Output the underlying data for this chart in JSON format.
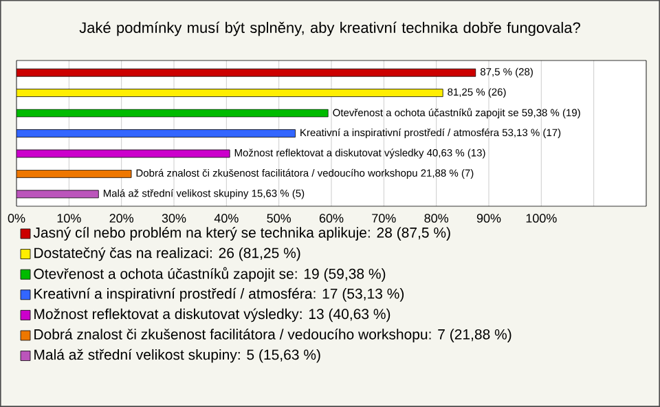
{
  "chart_data": {
    "type": "bar",
    "orientation": "horizontal",
    "stacked": true,
    "title": "Jaké podmínky musí být splněny, aby kreativní technika dobře fungovala?",
    "categories": [
      null,
      null,
      null,
      null,
      null,
      null,
      null
    ],
    "series": [
      {
        "name": "Jasný cíl nebo problém na který se technika aplikuje: 28 (87,5 %)",
        "color": "#cc0000",
        "values": [
          87.5,
          null,
          null,
          null,
          null,
          null,
          null
        ],
        "value_labels": [
          "87,5 % (28)",
          null,
          null,
          null,
          null,
          null,
          null
        ]
      },
      {
        "name": "Dostatečný čas na realizaci: 26 (81,25 %)",
        "color": "#ffee00",
        "values": [
          null,
          81.25,
          null,
          null,
          null,
          null,
          null
        ],
        "value_labels": [
          null,
          "81,25 % (26)",
          null,
          null,
          null,
          null,
          null
        ]
      },
      {
        "name": "Otevřenost a ochota účastníků zapojit se: 19 (59,38 %)",
        "color": "#00bb00",
        "values": [
          null,
          null,
          59.38,
          null,
          null,
          null,
          null
        ],
        "value_labels": [
          null,
          null,
          "Otevřenost a ochota účastníků zapojit se 59,38 % (19)",
          null,
          null,
          null,
          null
        ]
      },
      {
        "name": "Kreativní a inspirativní prostředí / atmosféra: 17 (53,13 %)",
        "color": "#3366ff",
        "values": [
          null,
          null,
          null,
          53.13,
          null,
          null,
          null
        ],
        "value_labels": [
          null,
          null,
          null,
          "Kreativní a inspirativní prostředí / atmosféra 53,13 % (17)",
          null,
          null,
          null
        ]
      },
      {
        "name": "Možnost reflektovat a diskutovat výsledky: 13 (40,63 %)",
        "color": "#cc00cc",
        "values": [
          null,
          null,
          null,
          null,
          40.63,
          null,
          null
        ],
        "value_labels": [
          null,
          null,
          null,
          null,
          "Možnost reflektovat a diskutovat výsledky 40,63 % (13)",
          null,
          null
        ]
      },
      {
        "name": "Dobrá znalost či zkušenost facilitátora / vedoucího workshopu: 7 (21,88 %)",
        "color": "#ee7700",
        "values": [
          null,
          null,
          null,
          null,
          null,
          21.88,
          null
        ],
        "value_labels": [
          null,
          null,
          null,
          null,
          null,
          "Dobrá znalost či zkušenost facilitátora / vedoucího workshopu 21,88 % (7)",
          null
        ]
      },
      {
        "name": "Malá až střední velikost skupiny: 5 (15,63 %)",
        "color": "#bb55bb",
        "values": [
          null,
          null,
          null,
          null,
          null,
          null,
          15.63
        ],
        "value_labels": [
          null,
          null,
          null,
          null,
          null,
          null,
          "Malá až střední velikost skupiny 15,63 % (5)"
        ]
      }
    ],
    "xlim": [
      0,
      120
    ],
    "xticks": [
      {
        "value": 0,
        "label": "0%"
      },
      {
        "value": 10,
        "label": "10%"
      },
      {
        "value": 20,
        "label": "20%"
      },
      {
        "value": 30,
        "label": "30%"
      },
      {
        "value": 40,
        "label": "40%"
      },
      {
        "value": 50,
        "label": "50%"
      },
      {
        "value": 60,
        "label": "60%"
      },
      {
        "value": 70,
        "label": "70%"
      },
      {
        "value": 80,
        "label": "80%"
      },
      {
        "value": 90,
        "label": "90%"
      },
      {
        "value": 100,
        "label": "100%"
      },
      {
        "value": 110,
        "label": null
      },
      {
        "value": 120,
        "label": null
      }
    ],
    "grid": "x",
    "legend": "bottom",
    "tick_labels": "x"
  }
}
